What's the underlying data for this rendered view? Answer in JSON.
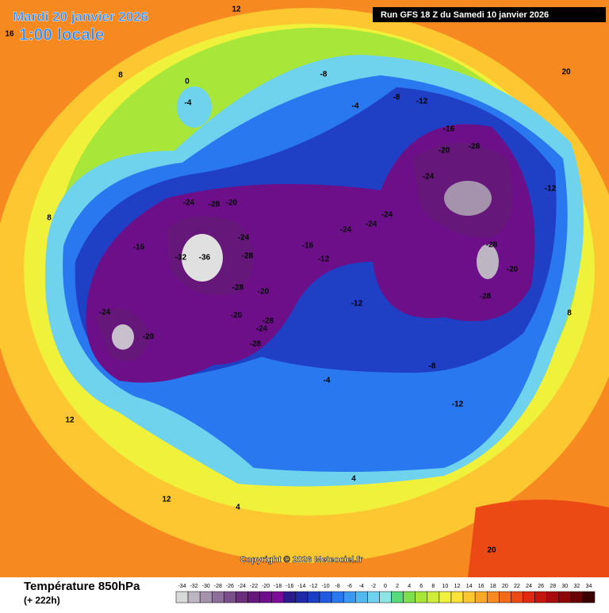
{
  "header": {
    "date": "Mardi 20 janvier 2026",
    "time": "1:00 locale",
    "run": "Run GFS 18 Z du Samedi 10 janvier 2026"
  },
  "copyright": "Copyright © 2026 Meteociel.fr",
  "footer": {
    "title": "Température 850hPa",
    "lead": "(+ 222h)"
  },
  "colorbar": {
    "ticks": [
      -34,
      -32,
      -30,
      -28,
      -26,
      -24,
      -22,
      -20,
      -18,
      -16,
      -14,
      -12,
      -10,
      -8,
      -6,
      -4,
      -2,
      0,
      2,
      4,
      6,
      8,
      10,
      12,
      14,
      16,
      18,
      20,
      22,
      24,
      26,
      28,
      30,
      32,
      34
    ],
    "colors": [
      "#d8d8d8",
      "#bdb6c2",
      "#a593ad",
      "#8d6f99",
      "#7a4f8a",
      "#6b2e7a",
      "#65177a",
      "#6e0f8a",
      "#7d0c99",
      "#2b1b8c",
      "#1e2aa8",
      "#1a3fc4",
      "#1f5ae0",
      "#2a78ef",
      "#3a98f2",
      "#52b8f0",
      "#6fd3ee",
      "#8ee6e4",
      "#55d97a",
      "#7de04a",
      "#a8e63a",
      "#cfec38",
      "#eff13a",
      "#fde23a",
      "#fcc730",
      "#f9a928",
      "#f68a20",
      "#f26a1a",
      "#ec4a14",
      "#dd2a10",
      "#c4160e",
      "#a80c0c",
      "#8c0808",
      "#6a0404",
      "#3c0000"
    ]
  },
  "contour_labels": [
    -36,
    -32,
    -28,
    -24,
    -20,
    -24,
    -28,
    -28,
    -20,
    -20,
    -28,
    -24,
    -28,
    -24,
    -20,
    -16,
    -16,
    -12,
    -12,
    -24,
    -24,
    -24,
    -24,
    -20,
    -28,
    -16,
    -12,
    -8,
    -4,
    -8,
    -12,
    -28,
    -20,
    -28,
    -12,
    -8,
    -4,
    4,
    4,
    20,
    20,
    16,
    8,
    0,
    -4,
    12,
    12,
    12,
    8,
    8
  ]
}
